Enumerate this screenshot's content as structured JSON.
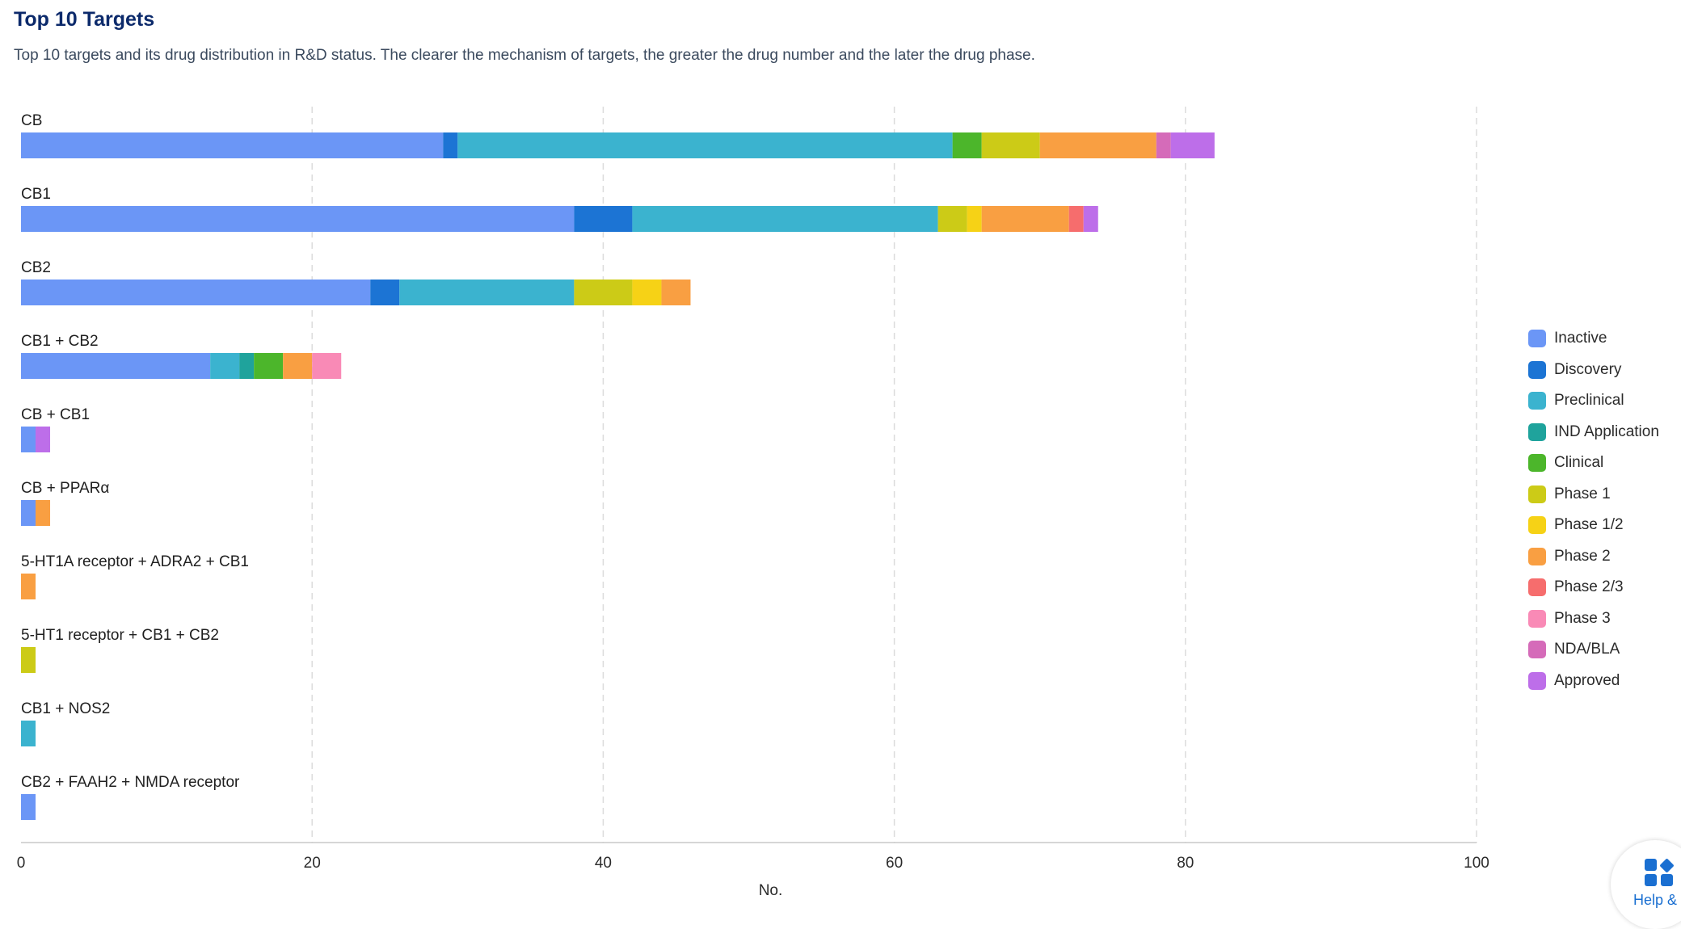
{
  "header": {
    "title": "Top 10 Targets",
    "subtitle": "Top 10 targets and its drug distribution in R&D status. The clearer the mechanism of targets, the greater the drug number and the later the drug phase."
  },
  "help": {
    "label": "Help &",
    "icon": "help-grid-icon"
  },
  "chart_data": {
    "type": "bar",
    "orientation": "horizontal",
    "stacked": true,
    "categories": [
      "CB",
      "CB1",
      "CB2",
      "CB1 + CB2",
      "CB + CB1",
      "CB + PPARα",
      "5-HT1A receptor + ADRA2 + CB1",
      "5-HT1 receptor + CB1 + CB2",
      "CB1 + NOS2",
      "CB2 + FAAH2 + NMDA receptor"
    ],
    "series": [
      {
        "name": "Inactive",
        "color": "#6b96f6",
        "values": [
          29,
          38,
          24,
          13,
          1,
          1,
          0,
          0,
          0,
          1
        ]
      },
      {
        "name": "Discovery",
        "color": "#1c74d4",
        "values": [
          1,
          4,
          2,
          0,
          0,
          0,
          0,
          0,
          0,
          0
        ]
      },
      {
        "name": "Preclinical",
        "color": "#3bb3cf",
        "values": [
          34,
          21,
          12,
          2,
          0,
          0,
          0,
          0,
          1,
          0
        ]
      },
      {
        "name": "IND Application",
        "color": "#1fa39c",
        "values": [
          0,
          0,
          0,
          1,
          0,
          0,
          0,
          0,
          0,
          0
        ]
      },
      {
        "name": "Clinical",
        "color": "#4cb62b",
        "values": [
          2,
          0,
          0,
          2,
          0,
          0,
          0,
          0,
          0,
          0
        ]
      },
      {
        "name": "Phase 1",
        "color": "#cccb17",
        "values": [
          4,
          2,
          4,
          0,
          0,
          0,
          0,
          1,
          0,
          0
        ]
      },
      {
        "name": "Phase 1/2",
        "color": "#f6d216",
        "values": [
          0,
          1,
          2,
          0,
          0,
          0,
          0,
          0,
          0,
          0
        ]
      },
      {
        "name": "Phase 2",
        "color": "#f99f42",
        "values": [
          8,
          6,
          2,
          2,
          0,
          1,
          1,
          0,
          0,
          0
        ]
      },
      {
        "name": "Phase 2/3",
        "color": "#f66d6d",
        "values": [
          0,
          1,
          0,
          0,
          0,
          0,
          0,
          0,
          0,
          0
        ]
      },
      {
        "name": "Phase 3",
        "color": "#f98ab6",
        "values": [
          0,
          0,
          0,
          2,
          0,
          0,
          0,
          0,
          0,
          0
        ]
      },
      {
        "name": "NDA/BLA",
        "color": "#d56bb9",
        "values": [
          1,
          0,
          0,
          0,
          0,
          0,
          0,
          0,
          0,
          0
        ]
      },
      {
        "name": "Approved",
        "color": "#bd6ee9",
        "values": [
          3,
          1,
          0,
          0,
          1,
          0,
          0,
          0,
          0,
          0
        ]
      }
    ],
    "xlabel": "No.",
    "ylabel": "",
    "xlim": [
      0,
      100
    ],
    "xticks": [
      "0",
      "20",
      "40",
      "60",
      "80",
      "100"
    ],
    "grid": "vertical dashed",
    "legend": "right"
  }
}
